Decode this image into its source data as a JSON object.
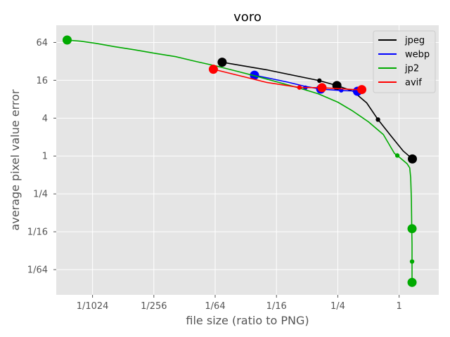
{
  "chart_data": {
    "type": "line",
    "title": "voro",
    "xlabel": "file size (ratio to PNG)",
    "ylabel": "average pixel value error",
    "x_scale": "log2",
    "y_scale": "log2",
    "xlim": [
      0.00043,
      2.45
    ],
    "ylim": [
      0.0062,
      120
    ],
    "x_ticks": [
      {
        "value": 0.0009765625,
        "label": "1/1024"
      },
      {
        "value": 0.00390625,
        "label": "1/256"
      },
      {
        "value": 0.015625,
        "label": "1/64"
      },
      {
        "value": 0.0625,
        "label": "1/16"
      },
      {
        "value": 0.25,
        "label": "1/4"
      },
      {
        "value": 1,
        "label": "1"
      }
    ],
    "y_ticks": [
      {
        "value": 64,
        "label": "64"
      },
      {
        "value": 16,
        "label": "16"
      },
      {
        "value": 4,
        "label": "4"
      },
      {
        "value": 1,
        "label": "1"
      },
      {
        "value": 0.25,
        "label": "1/4"
      },
      {
        "value": 0.0625,
        "label": "1/16"
      },
      {
        "value": 0.015625,
        "label": "1/64"
      }
    ],
    "grid": true,
    "legend_position": "top-right",
    "series": [
      {
        "name": "jpeg",
        "color": "#000000",
        "line": [
          [
            0.0183,
            31.0
          ],
          [
            0.05,
            23.5
          ],
          [
            0.165,
            15.8
          ],
          [
            0.245,
            13.2
          ],
          [
            0.35,
            10.8
          ],
          [
            0.48,
            7.0
          ],
          [
            0.62,
            3.8
          ],
          [
            0.85,
            2.0
          ],
          [
            1.1,
            1.2
          ],
          [
            1.35,
            0.9
          ]
        ],
        "small_markers": [
          [
            0.165,
            15.8
          ],
          [
            0.62,
            3.8
          ]
        ],
        "large_markers": [
          [
            0.0183,
            31.0
          ],
          [
            0.245,
            13.2
          ],
          [
            1.35,
            0.9
          ]
        ]
      },
      {
        "name": "webp",
        "color": "#0000ff",
        "line": [
          [
            0.038,
            19.3
          ],
          [
            0.08,
            15.0
          ],
          [
            0.12,
            12.8
          ],
          [
            0.17,
            11.6
          ],
          [
            0.27,
            11.0
          ],
          [
            0.38,
            10.8
          ],
          [
            0.39,
            10.7
          ]
        ],
        "small_markers": [
          [
            0.12,
            12.2
          ],
          [
            0.27,
            11.1
          ]
        ],
        "large_markers": [
          [
            0.038,
            19.3
          ],
          [
            0.17,
            11.6
          ],
          [
            0.39,
            10.7
          ]
        ]
      },
      {
        "name": "jp2",
        "color": "#00aa00",
        "line": [
          [
            0.00055,
            70.0
          ],
          [
            0.00075,
            67.0
          ],
          [
            0.00105,
            62.0
          ],
          [
            0.0016,
            55.0
          ],
          [
            0.0025,
            49.0
          ],
          [
            0.004,
            43.0
          ],
          [
            0.0064,
            38.0
          ],
          [
            0.01,
            32.0
          ],
          [
            0.016,
            27.0
          ],
          [
            0.025,
            22.5
          ],
          [
            0.04,
            18.5
          ],
          [
            0.064,
            15.0
          ],
          [
            0.1,
            12.3
          ],
          [
            0.16,
            9.8
          ],
          [
            0.25,
            7.2
          ],
          [
            0.35,
            5.2
          ],
          [
            0.5,
            3.5
          ],
          [
            0.7,
            2.2
          ],
          [
            0.9,
            1.1
          ],
          [
            0.96,
            1.02
          ],
          [
            1.1,
            0.85
          ],
          [
            1.2,
            0.75
          ],
          [
            1.27,
            0.65
          ],
          [
            1.3,
            0.45
          ],
          [
            1.32,
            0.2
          ],
          [
            1.33,
            0.07
          ],
          [
            1.34,
            0.04
          ],
          [
            1.34,
            0.02
          ],
          [
            1.34,
            0.0098
          ]
        ],
        "small_markers": [
          [
            0.96,
            1.02
          ],
          [
            1.34,
            0.021
          ]
        ],
        "large_markers": [
          [
            0.00055,
            70.0
          ],
          [
            1.34,
            0.07
          ],
          [
            1.34,
            0.0098
          ]
        ]
      },
      {
        "name": "avif",
        "color": "#ff0000",
        "line": [
          [
            0.015,
            24.0
          ],
          [
            0.03,
            18.2
          ],
          [
            0.05,
            14.8
          ],
          [
            0.08,
            13.2
          ],
          [
            0.105,
            12.3
          ],
          [
            0.175,
            12.2
          ],
          [
            0.25,
            11.8
          ],
          [
            0.36,
            11.4
          ],
          [
            0.43,
            11.4
          ]
        ],
        "small_markers": [
          [
            0.105,
            12.3
          ]
        ],
        "large_markers": [
          [
            0.015,
            24.0
          ],
          [
            0.175,
            12.2
          ],
          [
            0.43,
            11.4
          ]
        ]
      }
    ]
  }
}
